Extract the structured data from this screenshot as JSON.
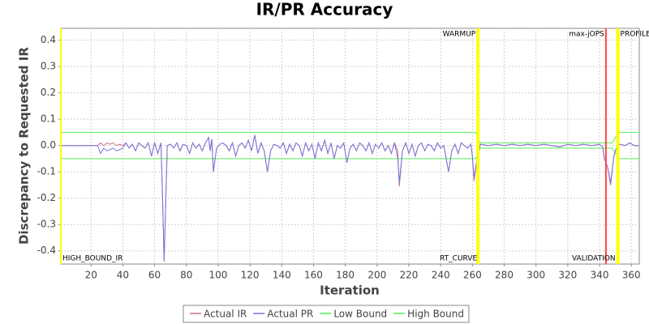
{
  "chart_data": {
    "type": "line",
    "title": "IR/PR Accuracy",
    "x_label": "Iteration",
    "y_label": "Discrepancy to Requested IR",
    "xlim": [
      1,
      365
    ],
    "ylim": [
      -0.45,
      0.445
    ],
    "xticks": [
      20,
      40,
      60,
      80,
      100,
      120,
      140,
      160,
      180,
      200,
      220,
      240,
      260,
      280,
      300,
      320,
      340,
      360
    ],
    "yticks": [
      -0.4,
      -0.3,
      -0.2,
      -0.1,
      {
        "value": 0,
        "label": "0.0"
      },
      0.1,
      0.2,
      0.3,
      0.4
    ],
    "grid": true,
    "legend": "bottom",
    "markers": [
      {
        "label": "HIGH_BOUND_IR",
        "value": 1,
        "color": "#ffff00",
        "position": "bottom-right"
      },
      {
        "label": "WARMUP",
        "value": 263,
        "color": "#ffff00",
        "position": "top-left"
      },
      {
        "label": "RT_CURVE",
        "value": 264,
        "color": "#ffff00",
        "position": "bottom-left"
      },
      {
        "label": "max-jOPS",
        "value": 344,
        "color": "#ff4444",
        "position": "top-left"
      },
      {
        "label": "VALIDATION",
        "value": 351,
        "color": "#ffff00",
        "position": "bottom-left"
      },
      {
        "label": "PROFILE",
        "value": 352,
        "color": "#ffff00",
        "position": "top-right"
      }
    ],
    "series": [
      {
        "name": "Actual IR",
        "color": "#cc6a8e",
        "x": [
          1,
          24,
          26,
          28,
          30,
          32,
          34,
          36,
          38,
          40,
          42,
          44,
          46,
          48,
          50,
          52,
          54,
          56,
          58,
          60,
          62,
          64,
          65,
          66,
          68,
          70,
          72,
          74,
          76,
          78,
          80,
          82,
          84,
          86,
          88,
          90,
          92,
          94,
          95,
          96,
          97,
          99,
          101,
          103,
          105,
          107,
          109,
          111,
          113,
          115,
          117,
          119,
          121,
          123,
          125,
          127,
          129,
          131,
          133,
          135,
          137,
          139,
          141,
          143,
          145,
          147,
          149,
          151,
          153,
          155,
          157,
          159,
          161,
          163,
          165,
          167,
          169,
          171,
          173,
          175,
          177,
          179,
          181,
          183,
          185,
          187,
          189,
          191,
          193,
          195,
          197,
          199,
          201,
          203,
          205,
          207,
          209,
          211,
          213,
          214,
          216,
          218,
          220,
          222,
          224,
          226,
          228,
          230,
          232,
          234,
          236,
          238,
          240,
          242,
          245,
          247,
          249,
          251,
          253,
          255,
          257,
          259,
          260,
          261,
          263,
          265,
          270,
          275,
          280,
          285,
          290,
          295,
          300,
          305,
          310,
          315,
          320,
          325,
          330,
          335,
          340,
          342,
          343,
          345,
          347,
          349,
          351,
          353,
          356,
          359,
          362,
          365
        ],
        "values": [
          0,
          0,
          0.01,
          0,
          0.01,
          0.005,
          0.01,
          0,
          0.005,
          0,
          0.01,
          -0.01,
          0.005,
          -0.02,
          0.01,
          0,
          -0.01,
          0.01,
          -0.04,
          0.01,
          -0.03,
          0.01,
          -0.2,
          -0.44,
          0,
          0.005,
          -0.01,
          0.01,
          -0.02,
          0.005,
          0,
          -0.03,
          0.01,
          -0.01,
          0.005,
          -0.02,
          0.01,
          0.03,
          -0.02,
          0.025,
          -0.1,
          -0.01,
          0.005,
          0.01,
          0,
          -0.02,
          0.01,
          -0.04,
          0,
          0.01,
          -0.01,
          0.02,
          -0.02,
          0.04,
          -0.03,
          0.01,
          -0.02,
          -0.1,
          -0.02,
          0.005,
          0,
          -0.01,
          0.01,
          -0.03,
          0.005,
          -0.02,
          0.01,
          0,
          -0.04,
          0.01,
          -0.02,
          0.005,
          -0.05,
          0.01,
          -0.02,
          0.02,
          -0.03,
          0.01,
          -0.05,
          0,
          -0.01,
          0.01,
          -0.065,
          -0.01,
          0.005,
          -0.02,
          0.01,
          0,
          -0.02,
          0.01,
          -0.03,
          0.005,
          -0.01,
          0.01,
          -0.02,
          0,
          -0.03,
          0.01,
          -0.02,
          -0.155,
          -0.02,
          0.01,
          -0.03,
          0.005,
          -0.04,
          0,
          0.01,
          -0.02,
          0.005,
          0,
          -0.02,
          0.01,
          -0.01,
          0,
          -0.1,
          -0.02,
          0.005,
          -0.03,
          0.01,
          0,
          -0.01,
          0.005,
          -0.04,
          -0.135,
          -0.05,
          0.005,
          0,
          0.005,
          0,
          0.005,
          0,
          0.005,
          0,
          0.005,
          0,
          -0.005,
          0.005,
          0,
          0.005,
          0,
          0.005,
          -0.005,
          -0.05,
          -0.08,
          -0.15,
          -0.04,
          0,
          0.005,
          0,
          0.01,
          0,
          0
        ]
      },
      {
        "name": "Actual PR",
        "color": "#7777dd",
        "x": [
          1,
          24,
          26,
          28,
          30,
          32,
          34,
          36,
          38,
          40,
          42,
          44,
          46,
          48,
          50,
          52,
          54,
          56,
          58,
          60,
          62,
          64,
          65,
          66,
          68,
          70,
          72,
          74,
          76,
          78,
          80,
          82,
          84,
          86,
          88,
          90,
          92,
          94,
          95,
          96,
          97,
          99,
          101,
          103,
          105,
          107,
          109,
          111,
          113,
          115,
          117,
          119,
          121,
          123,
          125,
          127,
          129,
          131,
          133,
          135,
          137,
          139,
          141,
          143,
          145,
          147,
          149,
          151,
          153,
          155,
          157,
          159,
          161,
          163,
          165,
          167,
          169,
          171,
          173,
          175,
          177,
          179,
          181,
          183,
          185,
          187,
          189,
          191,
          193,
          195,
          197,
          199,
          201,
          203,
          205,
          207,
          209,
          211,
          213,
          214,
          216,
          218,
          220,
          222,
          224,
          226,
          228,
          230,
          232,
          234,
          236,
          238,
          240,
          242,
          245,
          247,
          249,
          251,
          253,
          255,
          257,
          259,
          260,
          261,
          263,
          265,
          270,
          275,
          280,
          285,
          290,
          295,
          300,
          305,
          310,
          315,
          320,
          325,
          330,
          335,
          340,
          342,
          343,
          345,
          347,
          349,
          351,
          353,
          356,
          359,
          362,
          365
        ],
        "values": [
          0,
          0,
          -0.03,
          -0.01,
          -0.02,
          -0.015,
          -0.01,
          -0.02,
          -0.015,
          -0.01,
          0.01,
          -0.01,
          0.005,
          -0.02,
          0.01,
          0,
          -0.01,
          0.01,
          -0.04,
          0.01,
          -0.03,
          0.01,
          -0.2,
          -0.44,
          0,
          0.005,
          -0.01,
          0.01,
          -0.02,
          0.005,
          0,
          -0.03,
          0.01,
          -0.01,
          0.005,
          -0.02,
          0.01,
          0.03,
          -0.02,
          0.025,
          -0.1,
          -0.01,
          0.005,
          0.01,
          0,
          -0.02,
          0.01,
          -0.04,
          0,
          0.01,
          -0.01,
          0.02,
          -0.02,
          0.04,
          -0.03,
          0.01,
          -0.02,
          -0.1,
          -0.02,
          0.005,
          0,
          -0.01,
          0.01,
          -0.03,
          0.005,
          -0.02,
          0.01,
          0,
          -0.04,
          0.01,
          -0.02,
          0.005,
          -0.05,
          0.01,
          -0.02,
          0.02,
          -0.03,
          0.01,
          -0.05,
          0,
          -0.01,
          0.01,
          -0.065,
          -0.01,
          0.005,
          -0.02,
          0.01,
          0,
          -0.02,
          0.01,
          -0.03,
          0.005,
          -0.01,
          0.01,
          -0.02,
          0,
          -0.03,
          0.01,
          -0.05,
          -0.14,
          -0.02,
          0.01,
          -0.03,
          0.005,
          -0.04,
          0,
          0.01,
          -0.02,
          0.005,
          0,
          -0.02,
          0.01,
          -0.01,
          0,
          -0.1,
          -0.02,
          0.005,
          -0.03,
          0.01,
          0,
          -0.01,
          0.005,
          -0.04,
          -0.12,
          -0.05,
          0.005,
          0,
          0.005,
          0,
          0.005,
          0,
          0.005,
          0,
          0.005,
          0,
          -0.005,
          0.005,
          0,
          0.005,
          0,
          0.005,
          -0.005,
          -0.05,
          -0.08,
          -0.14,
          -0.04,
          0,
          0.005,
          0,
          0.01,
          0,
          0
        ]
      },
      {
        "name": "Low Bound",
        "color": "#55ee55",
        "x": [
          1,
          262,
          265,
          348,
          352,
          365
        ],
        "values": [
          -0.05,
          -0.05,
          -0.01,
          -0.01,
          -0.05,
          -0.05
        ]
      },
      {
        "name": "High Bound",
        "color": "#55ee55",
        "x": [
          1,
          262,
          265,
          348,
          352,
          365
        ],
        "values": [
          0.05,
          0.05,
          0.01,
          0.01,
          0.05,
          0.05
        ]
      }
    ]
  }
}
